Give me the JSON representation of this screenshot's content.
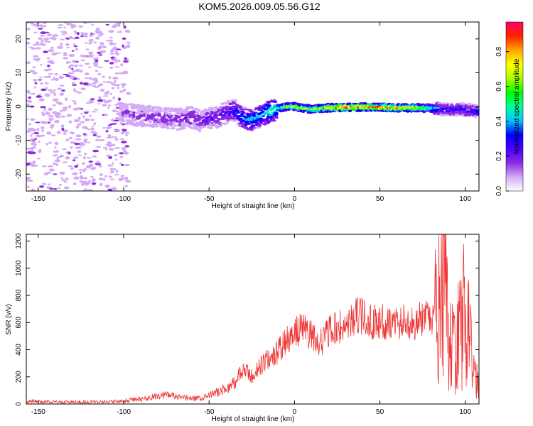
{
  "title": "KOM5.2026.009.05.56.G12",
  "chart_data": [
    {
      "type": "heatmap",
      "xlabel": "Height of straight line (km)",
      "ylabel": "Frequency (Hz)",
      "xlim": [
        -157,
        108
      ],
      "ylim": [
        -25,
        25
      ],
      "xticks": [
        -150,
        -100,
        -50,
        0,
        50,
        100
      ],
      "yticks": [
        -20,
        -10,
        0,
        10,
        20
      ],
      "colorbar": {
        "label": "Normalized spectral amplitude",
        "range": [
          0,
          0.97
        ],
        "ticks": [
          0.0,
          0.2,
          0.4,
          0.6,
          0.8
        ],
        "colors": [
          "#ffffff",
          "#d4a9f5",
          "#8a2be2",
          "#4b00ff",
          "#0000ff",
          "#00c8ff",
          "#00ff99",
          "#00ff00",
          "#aaff00",
          "#ffff00",
          "#ffa500",
          "#ff2200",
          "#ff0066"
        ]
      },
      "center_line": [
        [
          -100,
          -2
        ],
        [
          -90,
          -2.8
        ],
        [
          -80,
          -3.2
        ],
        [
          -70,
          -3.8
        ],
        [
          -60,
          -3.2
        ],
        [
          -55,
          -4.4
        ],
        [
          -50,
          -3.6
        ],
        [
          -45,
          -3.1
        ],
        [
          -40,
          -1.8
        ],
        [
          -35,
          -1.2
        ],
        [
          -30,
          -3.4
        ],
        [
          -25,
          -4.1
        ],
        [
          -20,
          -2.7
        ],
        [
          -15,
          -1.6
        ],
        [
          -10,
          -0.6
        ],
        [
          -5,
          -0.1
        ],
        [
          0,
          0.0
        ],
        [
          5,
          -0.5
        ],
        [
          10,
          -0.8
        ],
        [
          20,
          -0.4
        ],
        [
          30,
          -0.3
        ],
        [
          40,
          -0.2
        ],
        [
          50,
          -0.2
        ],
        [
          60,
          -0.4
        ],
        [
          70,
          -0.4
        ],
        [
          80,
          -0.5
        ],
        [
          85,
          -0.7
        ],
        [
          90,
          -0.9
        ],
        [
          100,
          -0.9
        ],
        [
          108,
          -1.5
        ]
      ],
      "amplitude_profile": [
        [
          -157,
          0.1
        ],
        [
          -100,
          0.15
        ],
        [
          -60,
          0.2
        ],
        [
          -40,
          0.25
        ],
        [
          -30,
          0.4
        ],
        [
          -20,
          0.45
        ],
        [
          -10,
          0.55
        ],
        [
          0,
          0.75
        ],
        [
          10,
          0.7
        ],
        [
          20,
          0.85
        ],
        [
          30,
          0.95
        ],
        [
          40,
          0.9
        ],
        [
          50,
          0.95
        ],
        [
          60,
          0.85
        ],
        [
          70,
          0.8
        ],
        [
          80,
          0.6
        ],
        [
          85,
          0.3
        ],
        [
          100,
          0.3
        ],
        [
          108,
          0.35
        ]
      ]
    },
    {
      "type": "line",
      "xlabel": "Height of straight line (km)",
      "ylabel": "SNR (v/v)",
      "xlim": [
        -157,
        108
      ],
      "ylim": [
        0,
        1250
      ],
      "xticks": [
        -150,
        -100,
        -50,
        0,
        50,
        100
      ],
      "yticks": [
        0,
        200,
        400,
        600,
        800,
        1000,
        1200
      ],
      "line_color": "#ee3333",
      "series": [
        {
          "x": [
            -157,
            -140,
            -120,
            -100,
            -95,
            -90,
            -85,
            -80,
            -75,
            -70,
            -65,
            -60,
            -55,
            -50,
            -45,
            -40,
            -35,
            -30,
            -25,
            -20,
            -15,
            -10,
            -5,
            0,
            5,
            10,
            15,
            20,
            25,
            30,
            33,
            35,
            37,
            40,
            45,
            50,
            55,
            60,
            65,
            70,
            75,
            80,
            83,
            85,
            88,
            90,
            92,
            95,
            98,
            100,
            102,
            104,
            106,
            108
          ],
          "values": [
            20,
            15,
            15,
            20,
            30,
            35,
            45,
            60,
            70,
            55,
            45,
            40,
            40,
            60,
            90,
            110,
            160,
            250,
            200,
            280,
            330,
            380,
            460,
            520,
            560,
            500,
            450,
            530,
            560,
            580,
            600,
            620,
            660,
            640,
            600,
            610,
            600,
            600,
            610,
            590,
            630,
            620,
            640,
            700,
            800,
            500,
            400,
            450,
            600,
            700,
            500,
            350,
            200,
            150
          ]
        }
      ]
    }
  ]
}
